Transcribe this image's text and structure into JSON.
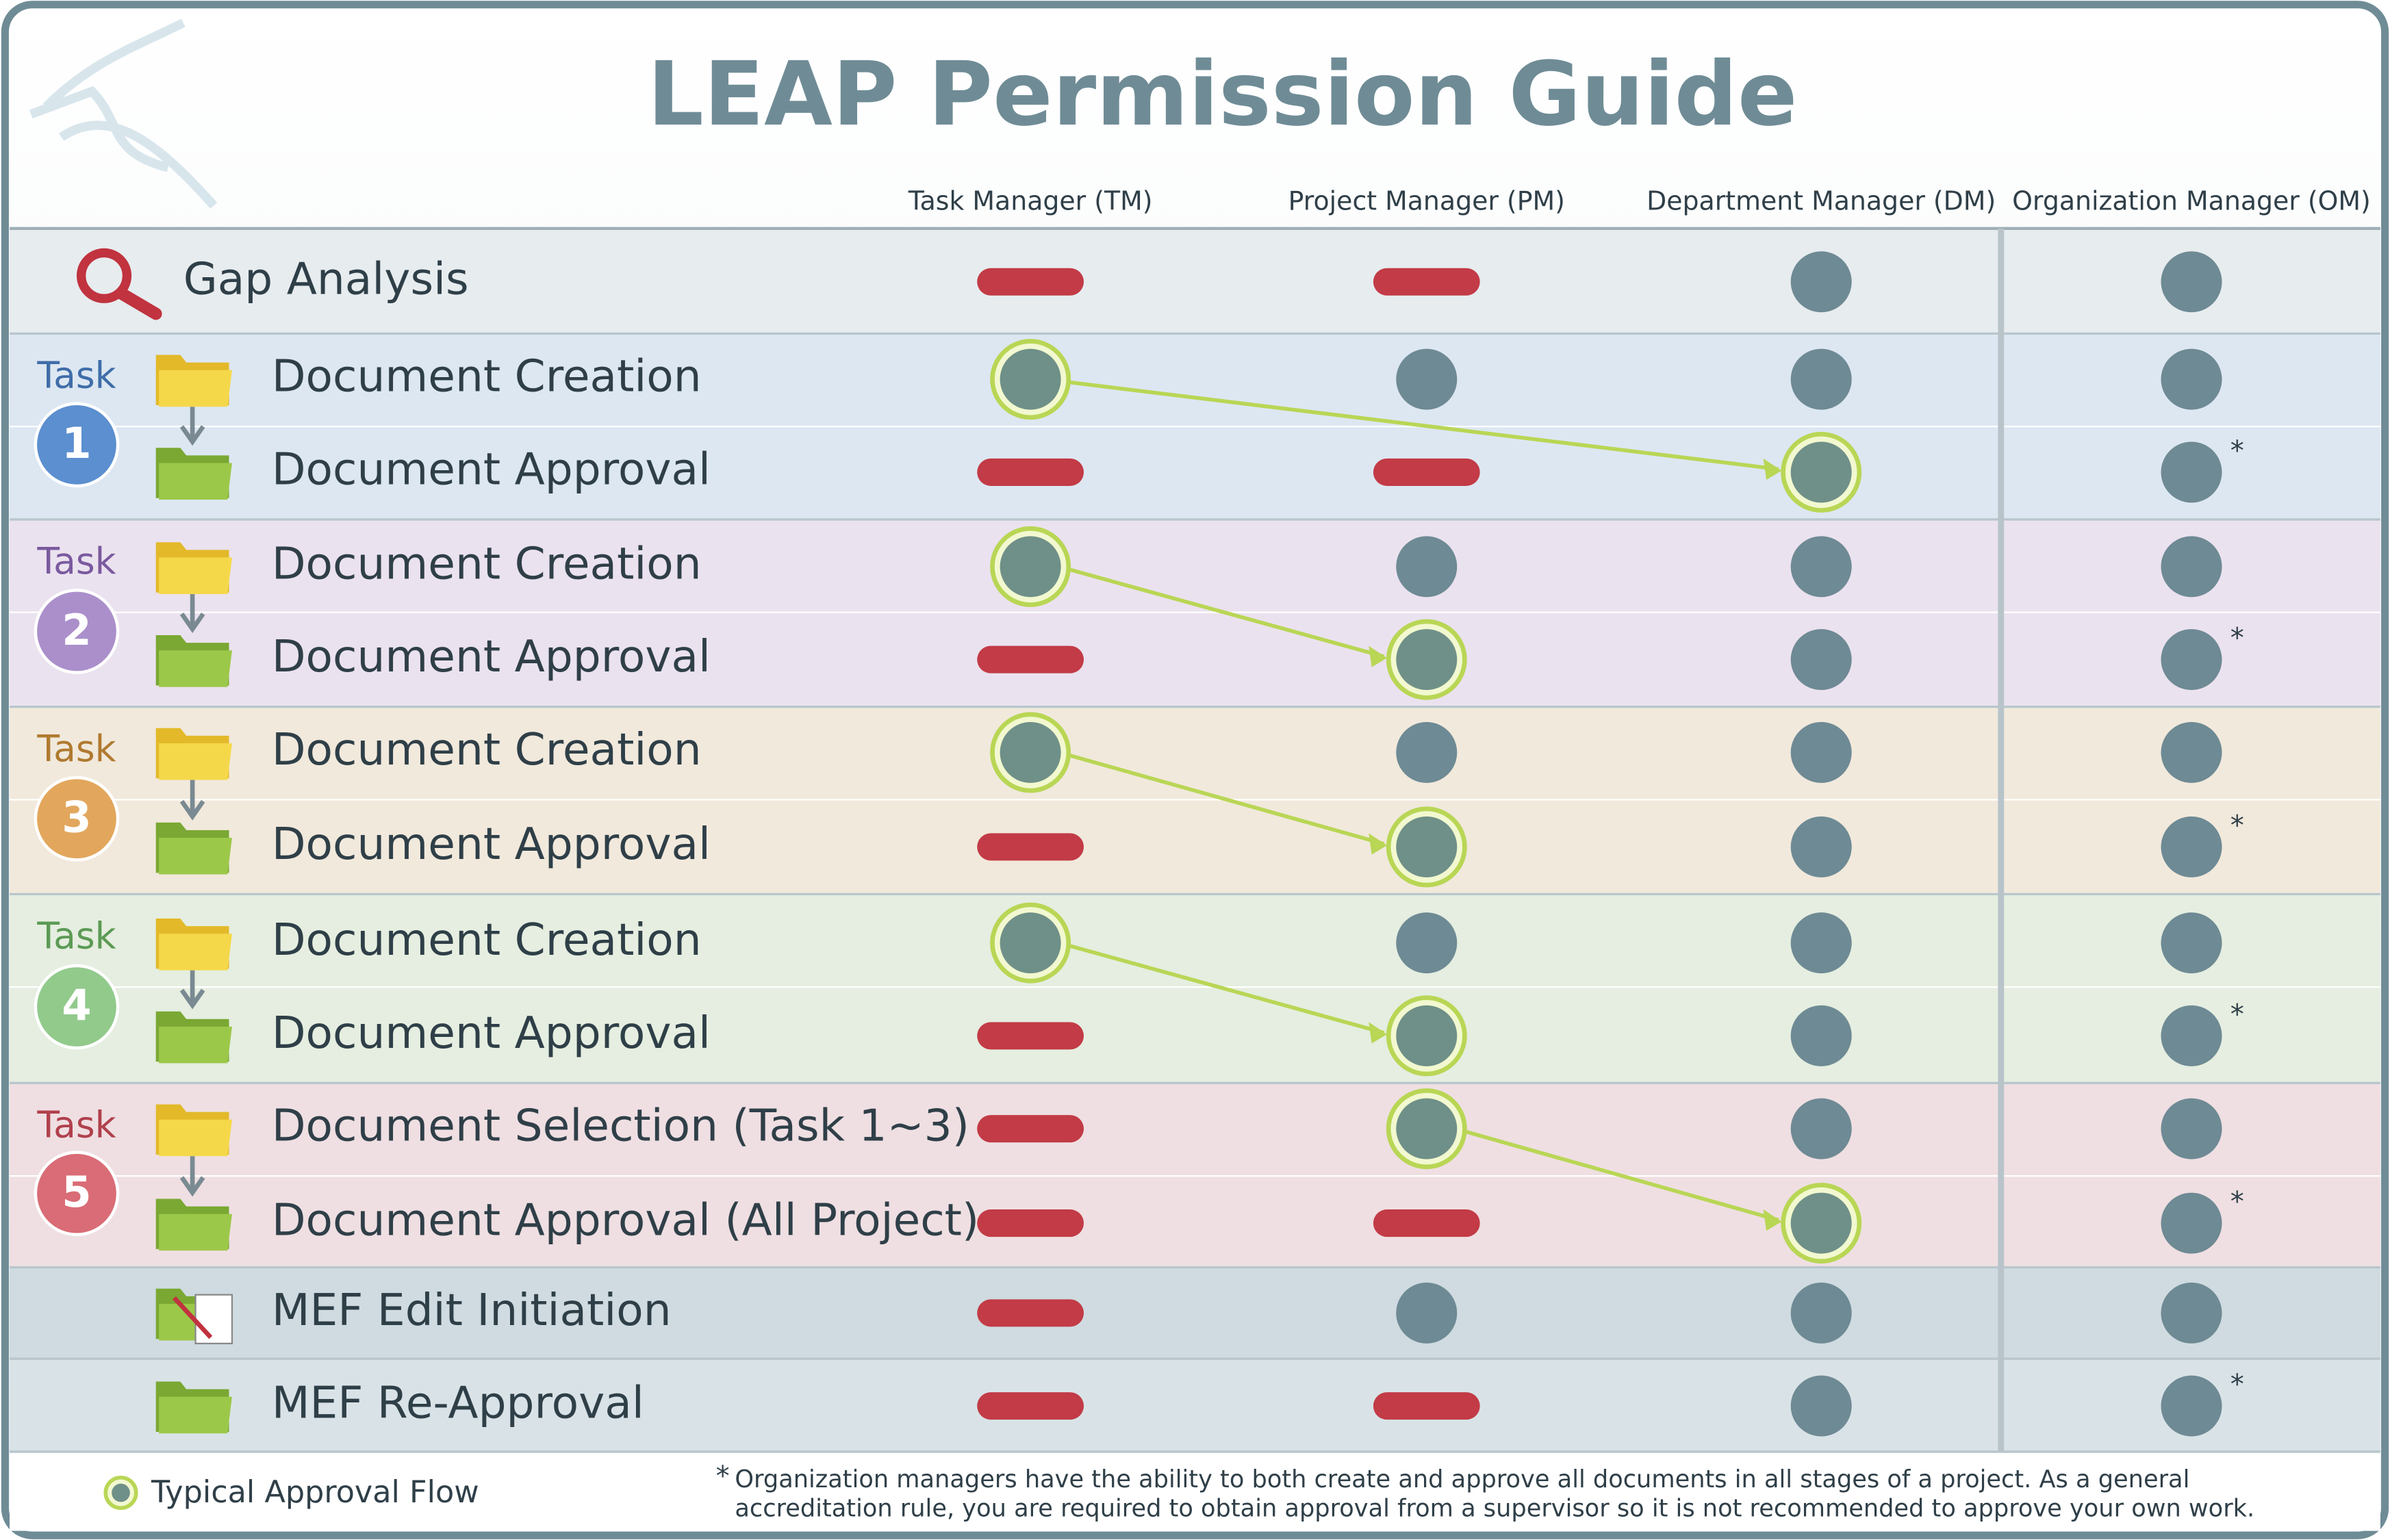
{
  "title": "LEAP Permission Guide",
  "columns": [
    "Task Manager (TM)",
    "Project Manager (PM)",
    "Department Manager (DM)",
    "Organization Manager (OM)"
  ],
  "gap_row": "Gap Analysis",
  "tasks": [
    {
      "word": "Task",
      "number": 1,
      "rows": [
        "Document Creation",
        "Document Approval"
      ]
    },
    {
      "word": "Task",
      "number": 2,
      "rows": [
        "Document Creation",
        "Document Approval"
      ]
    },
    {
      "word": "Task",
      "number": 3,
      "rows": [
        "Document Creation",
        "Document Approval"
      ]
    },
    {
      "word": "Task",
      "number": 4,
      "rows": [
        "Document Creation",
        "Document Approval"
      ]
    },
    {
      "word": "Task",
      "number": 5,
      "rows": [
        "Document Selection (Task 1~3)",
        "Document Approval (All Project)"
      ]
    }
  ],
  "mef_rows": [
    "MEF Edit Initiation",
    "MEF Re-Approval"
  ],
  "asterisk": "*",
  "legend": "Typical Approval Flow",
  "footnote": [
    "Organization managers have the ability to both create and approve all documents in all stages of a project.  As a general",
    "accreditation rule, you are required to obtain approval from a supervisor so it is not recommended to approve your own work."
  ]
}
